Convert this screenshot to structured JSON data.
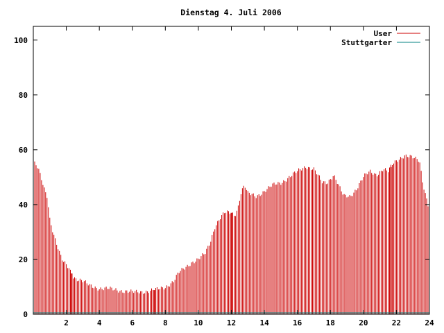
{
  "chart_data": {
    "type": "bar",
    "title": "Dienstag 4. Juli 2006",
    "xlabel": "",
    "ylabel": "",
    "xlim": [
      0,
      24
    ],
    "ylim": [
      0,
      105
    ],
    "x_ticks": [
      "2",
      "4",
      "6",
      "8",
      "10",
      "12",
      "14",
      "16",
      "18",
      "20",
      "22",
      "24"
    ],
    "y_ticks": [
      "0",
      "20",
      "40",
      "60",
      "80",
      "100"
    ],
    "legend_position": "top-right",
    "grid": false,
    "series": [
      {
        "name": "User",
        "color": "#cc0000",
        "profile_points": [
          [
            0.08,
            55
          ],
          [
            0.3,
            53
          ],
          [
            0.5,
            49
          ],
          [
            0.7,
            45
          ],
          [
            0.85,
            43
          ],
          [
            1.0,
            35
          ],
          [
            1.2,
            30
          ],
          [
            1.4,
            26
          ],
          [
            1.6,
            22
          ],
          [
            1.8,
            19
          ],
          [
            2.0,
            18
          ],
          [
            2.2,
            16.5
          ],
          [
            2.4,
            14
          ],
          [
            2.6,
            13
          ],
          [
            3.0,
            12
          ],
          [
            3.4,
            10.5
          ],
          [
            4.0,
            9.5
          ],
          [
            5.0,
            9
          ],
          [
            5.5,
            8.5
          ],
          [
            6.0,
            8
          ],
          [
            7.0,
            8.5
          ],
          [
            7.5,
            9
          ],
          [
            8.0,
            10
          ],
          [
            8.5,
            12
          ],
          [
            8.8,
            15
          ],
          [
            9.2,
            17
          ],
          [
            9.6,
            19
          ],
          [
            10.0,
            20
          ],
          [
            10.4,
            22
          ],
          [
            10.7,
            26
          ],
          [
            11.0,
            32
          ],
          [
            11.3,
            35
          ],
          [
            11.6,
            37
          ],
          [
            12.0,
            37
          ],
          [
            12.2,
            36
          ],
          [
            12.4,
            39
          ],
          [
            12.6,
            45
          ],
          [
            12.8,
            47
          ],
          [
            13.0,
            44
          ],
          [
            13.5,
            43
          ],
          [
            14.0,
            45
          ],
          [
            14.5,
            47
          ],
          [
            15.0,
            48
          ],
          [
            15.5,
            50
          ],
          [
            16.0,
            52
          ],
          [
            16.5,
            54
          ],
          [
            17.0,
            53
          ],
          [
            17.5,
            48
          ],
          [
            17.8,
            48
          ],
          [
            18.2,
            51
          ],
          [
            18.5,
            47
          ],
          [
            18.8,
            43
          ],
          [
            19.2,
            43
          ],
          [
            19.6,
            46
          ],
          [
            20.0,
            50
          ],
          [
            20.4,
            52
          ],
          [
            20.8,
            51
          ],
          [
            21.2,
            53
          ],
          [
            21.5,
            52
          ],
          [
            21.8,
            55
          ],
          [
            22.2,
            57
          ],
          [
            22.5,
            58
          ],
          [
            23.0,
            57
          ],
          [
            23.4,
            56
          ],
          [
            23.6,
            48
          ],
          [
            23.8,
            43
          ],
          [
            24.0,
            38
          ]
        ],
        "highlighted_bars_x": [
          2.33,
          7.33,
          12.0,
          21.67
        ]
      },
      {
        "name": "Stuttgarter",
        "color": "#008080",
        "constant_value": 0.5
      }
    ]
  }
}
